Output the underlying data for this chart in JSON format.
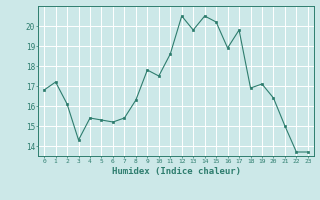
{
  "x": [
    0,
    1,
    2,
    3,
    4,
    5,
    6,
    7,
    8,
    9,
    10,
    11,
    12,
    13,
    14,
    15,
    16,
    17,
    18,
    19,
    20,
    21,
    22,
    23
  ],
  "y": [
    16.8,
    17.2,
    16.1,
    14.3,
    15.4,
    15.3,
    15.2,
    15.4,
    16.3,
    17.8,
    17.5,
    18.6,
    20.5,
    19.8,
    20.5,
    20.2,
    18.9,
    19.8,
    16.9,
    17.1,
    16.4,
    15.0,
    13.7,
    13.7
  ],
  "xlabel": "Humidex (Indice chaleur)",
  "ylim": [
    13.5,
    21.0
  ],
  "xlim": [
    -0.5,
    23.5
  ],
  "yticks": [
    14,
    15,
    16,
    17,
    18,
    19,
    20
  ],
  "xtick_labels": [
    "0",
    "1",
    "2",
    "3",
    "4",
    "5",
    "6",
    "7",
    "8",
    "9",
    "10",
    "11",
    "12",
    "13",
    "14",
    "15",
    "16",
    "17",
    "18",
    "19",
    "20",
    "21",
    "22",
    "23"
  ],
  "line_color": "#2e7d6e",
  "marker_color": "#2e7d6e",
  "bg_color": "#cce8e8",
  "grid_color": "#ffffff",
  "tick_color": "#2e7d6e",
  "label_color": "#2e7d6e",
  "font_family": "monospace"
}
